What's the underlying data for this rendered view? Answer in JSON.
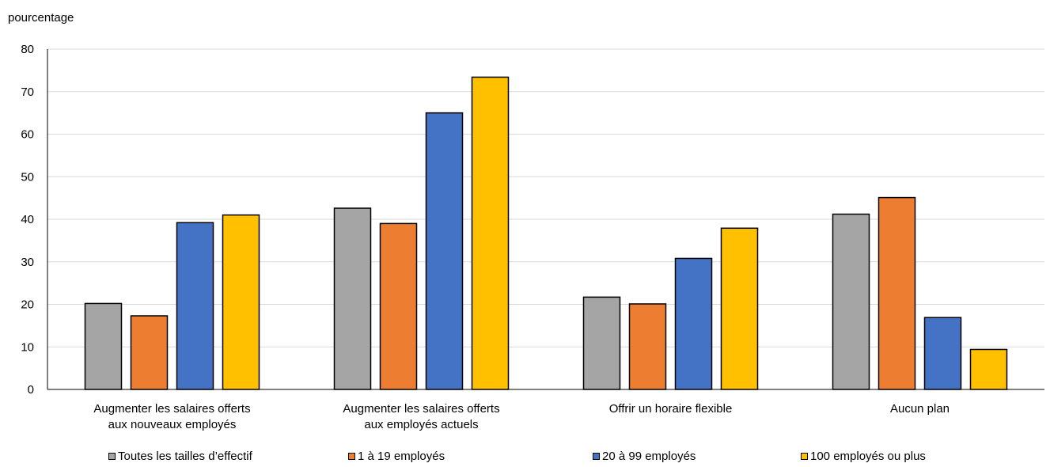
{
  "chart_data": {
    "type": "bar",
    "ylabel": "pourcentage",
    "ylim": [
      0,
      80
    ],
    "yticks": [
      0,
      10,
      20,
      30,
      40,
      50,
      60,
      70,
      80
    ],
    "categories": [
      [
        "Augmenter les salaires offerts",
        "aux nouveaux employés"
      ],
      [
        "Augmenter les salaires offerts",
        "aux employés actuels"
      ],
      [
        "Offrir un horaire flexible"
      ],
      [
        "Aucun plan"
      ]
    ],
    "series": [
      {
        "name": "Toutes les tailles d’effectif",
        "color": "#a5a5a5",
        "values": [
          20.2,
          42.6,
          21.7,
          41.2
        ]
      },
      {
        "name": "1 à 19 employés",
        "color": "#ed7d31",
        "values": [
          17.3,
          39.0,
          20.1,
          45.1
        ]
      },
      {
        "name": "20 à 99 employés",
        "color": "#4472c4",
        "values": [
          39.2,
          65.0,
          30.8,
          16.9
        ]
      },
      {
        "name": "100 employés ou plus",
        "color": "#ffc000",
        "values": [
          41.0,
          73.4,
          37.9,
          9.4
        ]
      }
    ],
    "grid": true,
    "legend": "bottom"
  }
}
